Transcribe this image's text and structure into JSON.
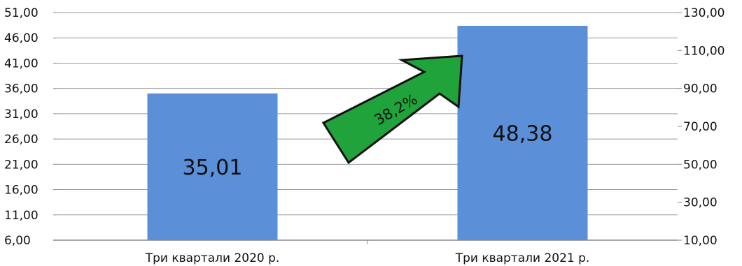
{
  "chart_data": {
    "type": "bar",
    "categories": [
      "Три квартали 2020 р.",
      "Три квартали 2021 р."
    ],
    "values": [
      35.01,
      48.38
    ],
    "data_labels": [
      "35,01",
      "48,38"
    ],
    "bar_color": "#5b8fd8",
    "y_left": {
      "ylim": [
        6,
        51
      ],
      "ticks": [
        6,
        11,
        16,
        21,
        26,
        31,
        36,
        41,
        46,
        51
      ],
      "tick_labels": [
        "6,00",
        "11,00",
        "16,00",
        "21,00",
        "26,00",
        "31,00",
        "36,00",
        "41,00",
        "46,00",
        "51,00"
      ]
    },
    "y_right": {
      "ylim": [
        10,
        130
      ],
      "ticks": [
        10,
        30,
        50,
        70,
        90,
        110,
        130
      ],
      "tick_labels": [
        "10,00",
        "30,00",
        "50,00",
        "70,00",
        "90,00",
        "110,00",
        "130,00"
      ]
    },
    "grid": true,
    "annotation": {
      "text": "38,2%",
      "shape": "arrow",
      "fill_color": "#1fa33a",
      "stroke_color": "#111111"
    }
  }
}
